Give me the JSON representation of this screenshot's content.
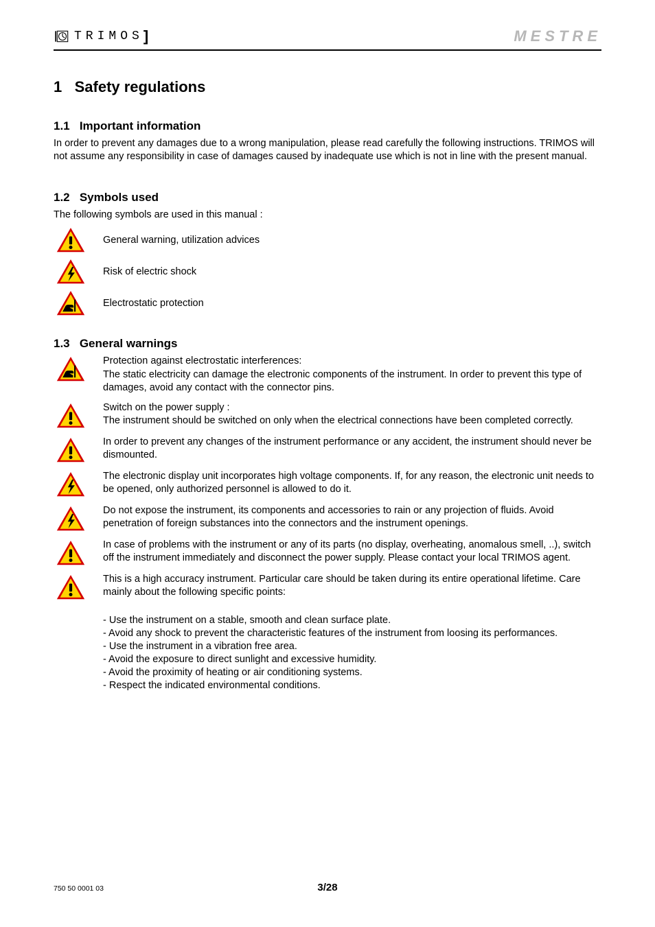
{
  "header": {
    "brand_left": "TRIMOS",
    "brand_right": "MESTRE"
  },
  "section": {
    "number": "1",
    "title": "Safety regulations"
  },
  "s1_1": {
    "number": "1.1",
    "title": "Important information",
    "body": "In order to prevent any damages due to a wrong manipulation, please read carefully the following instructions. TRIMOS will not assume any responsibility in case of damages caused by inadequate use which is not in line with the present manual."
  },
  "s1_2": {
    "number": "1.2",
    "title": "Symbols used",
    "intro": "The following symbols are used in this manual :",
    "symbols": [
      {
        "icon": "warning",
        "label": "General warning, utilization advices"
      },
      {
        "icon": "shock",
        "label": "Risk of electric shock"
      },
      {
        "icon": "esd",
        "label": "Electrostatic protection"
      }
    ]
  },
  "s1_3": {
    "number": "1.3",
    "title": "General warnings",
    "items": [
      {
        "icon": "esd",
        "text": "Protection against electrostatic interferences:\nThe static electricity can damage the electronic components of the instrument. In order to prevent this type of damages, avoid any contact with the connector pins."
      },
      {
        "icon": "warning",
        "text": "Switch on the power supply :\nThe instrument should be switched on only when the electrical connections have been completed correctly."
      },
      {
        "icon": "warning",
        "text": "In order to prevent any changes of the instrument performance or any accident, the instrument should never be dismounted."
      },
      {
        "icon": "shock",
        "text": "The electronic display unit incorporates high voltage components. If, for any reason, the electronic unit needs to be opened, only authorized personnel is allowed to do it."
      },
      {
        "icon": "shock",
        "text": "Do not expose the instrument, its components and accessories to rain or any projection of fluids. Avoid penetration of foreign substances into the connectors and the instrument openings."
      },
      {
        "icon": "warning",
        "text": "In case of problems with the instrument or any of its parts (no display, overheating, anomalous smell, ..), switch off the instrument immediately and disconnect the power supply. Please contact your local TRIMOS agent."
      },
      {
        "icon": "warning",
        "text": "This is a high accuracy instrument. Particular care should be taken during its entire operational lifetime. Care mainly about the following specific points:"
      }
    ],
    "bullets": [
      "- Use the instrument on a stable, smooth and clean surface plate.",
      "- Avoid any shock to prevent the characteristic features of the instrument from loosing its   performances.",
      "- Use the instrument in a vibration free area.",
      "- Avoid the exposure to direct sunlight and excessive humidity.",
      "- Avoid the proximity of heating or air conditioning systems.",
      "- Respect the indicated environmental conditions."
    ]
  },
  "footer": {
    "doc_id": "750 50 0001 03",
    "page": "3/28"
  },
  "colors": {
    "icon_red": "#d40000",
    "icon_yellow": "#ffd400",
    "icon_black": "#000000",
    "brand_right_grey": "#b7b7b7"
  }
}
